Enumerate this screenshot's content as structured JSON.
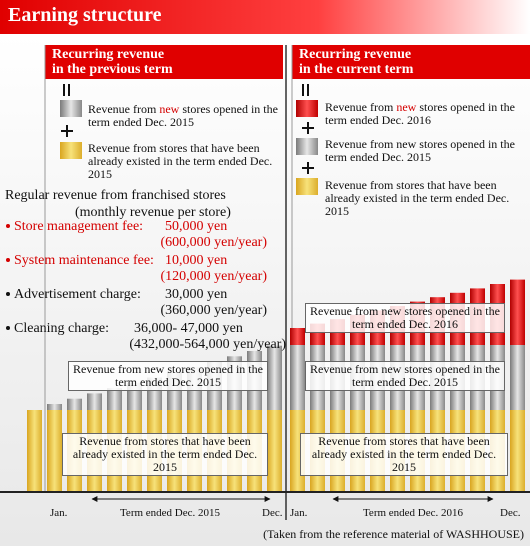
{
  "header": {
    "title": "Earning structure"
  },
  "previous_term": {
    "title": [
      "Recurring revenue",
      "in the previous term"
    ],
    "legend_new": {
      "before": "Revenue from",
      "highlight": "new",
      "after": "stores opened in the term ended Dec. 2015"
    },
    "legend_existing": "Revenue from stores that have been already existed in the term ended Dec. 2015",
    "fees": {
      "heading": "Regular revenue from franchised stores",
      "subheading": "(monthly revenue per store)",
      "items": [
        {
          "label": "Store management fee:",
          "monthly": "50,000 yen",
          "yearly": "(600,000 yen/year)"
        },
        {
          "label": "System maintenance fee:",
          "monthly": "10,000 yen",
          "yearly": "(120,000 yen/year)"
        },
        {
          "label": "Advertisement charge:",
          "monthly": "30,000 yen",
          "yearly": "(360,000 yen/year)"
        },
        {
          "label": "Cleaning charge:",
          "monthly": "36,000- 47,000 yen",
          "yearly": "(432,000-564,000 yen/year)"
        }
      ]
    },
    "chart_labels": [
      "Revenue from new stores opened in the term ended Dec. 2015",
      "Revenue from stores that have been already existed in the term ended Dec. 2015"
    ],
    "axis": {
      "start": "Jan.",
      "period": "Term ended Dec. 2015",
      "end": "Dec."
    }
  },
  "current_term": {
    "title": [
      "Recurring revenue",
      "in the current term"
    ],
    "legend_new": {
      "before": "Revenue from",
      "highlight": "new",
      "after": "stores opened in the term ended Dec. 2016"
    },
    "legend_prev_new": "Revenue from new stores opened in the term ended Dec. 2015",
    "legend_existing": "Revenue from stores that have been already existed in the term ended Dec. 2015",
    "chart_labels": [
      "Revenue from new stores opened in the term ended Dec. 2016",
      "Revenue from new stores opened in the term ended Dec. 2015",
      "Revenue from stores that have been already existed in the term ended Dec. 2015"
    ],
    "axis": {
      "start": "Jan.",
      "period": "Term ended Dec. 2016",
      "end": "Dec."
    }
  },
  "footer": "(Taken from the reference material of WASHHOUSE)"
}
